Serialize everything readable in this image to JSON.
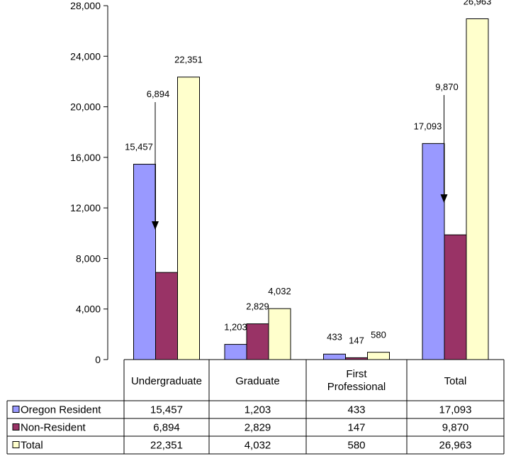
{
  "chart_data": {
    "type": "bar",
    "categories": [
      "Undergraduate",
      "Graduate",
      "First Professional",
      "Total"
    ],
    "series": [
      {
        "name": "Oregon Resident",
        "color": "#9999FF",
        "values": [
          15457,
          1203,
          433,
          17093
        ],
        "labels": [
          "15,457",
          "1,203",
          "433",
          "17,093"
        ]
      },
      {
        "name": "Non-Resident",
        "color": "#993366",
        "values": [
          6894,
          2829,
          147,
          9870
        ],
        "labels": [
          "6,894",
          "2,829",
          "147",
          "9,870"
        ]
      },
      {
        "name": "Total",
        "color": "#FFFFCC",
        "values": [
          22351,
          4032,
          580,
          26963
        ],
        "labels": [
          "22,351",
          "4,032",
          "580",
          "26,963"
        ]
      }
    ],
    "ylim": [
      0,
      28000
    ],
    "yticks": [
      0,
      4000,
      8000,
      12000,
      16000,
      20000,
      24000,
      28000
    ],
    "ytick_labels": [
      "0",
      "4,000",
      "8,000",
      "12,000",
      "16,000",
      "20,000",
      "24,000",
      "28,000"
    ],
    "grid": false,
    "legend": "data-table-below",
    "annotations": [
      {
        "type": "arrow",
        "category_index": 0,
        "series_index": 1
      },
      {
        "type": "arrow",
        "category_index": 3,
        "series_index": 1
      }
    ]
  }
}
